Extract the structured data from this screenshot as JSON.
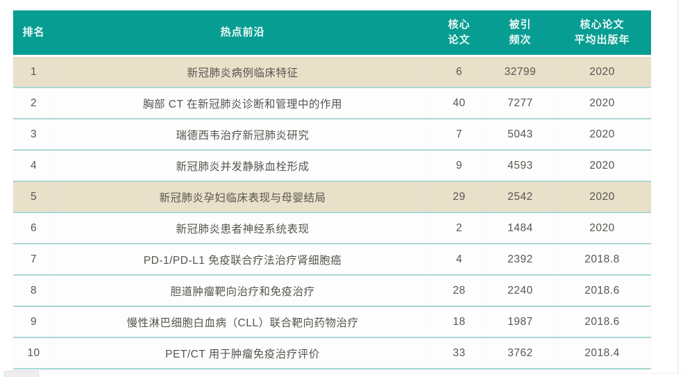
{
  "table": {
    "headers": [
      "排名",
      "热点前沿",
      "核心\n论文",
      "被引\n频次",
      "核心论文\n平均出版年"
    ],
    "rows": [
      {
        "rank": "1",
        "topic": "新冠肺炎病例临床特征",
        "core_papers": "6",
        "citations": "32799",
        "avg_year": "2020"
      },
      {
        "rank": "2",
        "topic": "胸部 CT 在新冠肺炎诊断和管理中的作用",
        "core_papers": "40",
        "citations": "7277",
        "avg_year": "2020"
      },
      {
        "rank": "3",
        "topic": "瑞德西韦治疗新冠肺炎研究",
        "core_papers": "7",
        "citations": "5043",
        "avg_year": "2020"
      },
      {
        "rank": "4",
        "topic": "新冠肺炎并发静脉血栓形成",
        "core_papers": "9",
        "citations": "4593",
        "avg_year": "2020"
      },
      {
        "rank": "5",
        "topic": "新冠肺炎孕妇临床表现与母婴结局",
        "core_papers": "29",
        "citations": "2542",
        "avg_year": "2020"
      },
      {
        "rank": "6",
        "topic": "新冠肺炎患者神经系统表现",
        "core_papers": "2",
        "citations": "1484",
        "avg_year": "2020"
      },
      {
        "rank": "7",
        "topic": "PD-1/PD-L1 免疫联合疗法治疗肾细胞癌",
        "core_papers": "4",
        "citations": "2392",
        "avg_year": "2018.8"
      },
      {
        "rank": "8",
        "topic": "胆道肿瘤靶向治疗和免疫治疗",
        "core_papers": "28",
        "citations": "2240",
        "avg_year": "2018.6"
      },
      {
        "rank": "9",
        "topic": "慢性淋巴细胞白血病（CLL）联合靶向药物治疗",
        "core_papers": "18",
        "citations": "1987",
        "avg_year": "2018.6"
      },
      {
        "rank": "10",
        "topic": "PET/CT 用于肿瘤免疫治疗评价",
        "core_papers": "33",
        "citations": "3762",
        "avg_year": "2018.4"
      }
    ],
    "highlighted_ranks": [
      1,
      5
    ]
  },
  "colors": {
    "header_bg": "#089D92",
    "header_text": "#EDF9F7",
    "highlight_row_bg": "#E9E0CA",
    "row_bg": "#FDFDFD",
    "row_separator": "#A8D8D3",
    "body_text": "#57544E"
  }
}
